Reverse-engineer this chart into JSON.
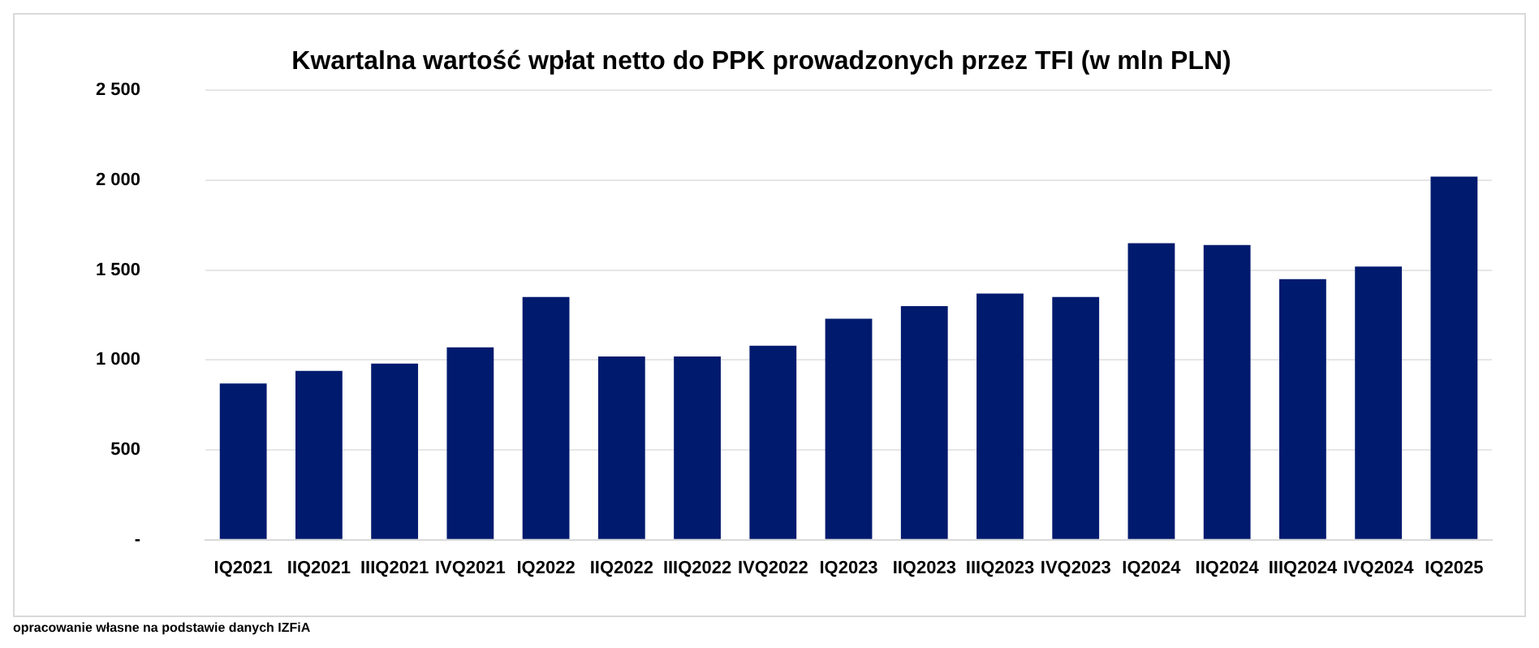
{
  "chart_data": {
    "type": "bar",
    "title": "Kwartalna wartość wpłat netto do PPK prowadzonych przez TFI (w mln PLN)",
    "categories": [
      "IQ2021",
      "IIQ2021",
      "IIIQ2021",
      "IVQ2021",
      "IQ2022",
      "IIQ2022",
      "IIIQ2022",
      "IVQ2022",
      "IQ2023",
      "IIQ2023",
      "IIIQ2023",
      "IVQ2023",
      "IQ2024",
      "IIQ2024",
      "IIIQ2024",
      "IVQ2024",
      "IQ2025"
    ],
    "values": [
      870,
      940,
      980,
      1070,
      1350,
      1020,
      1020,
      1080,
      1230,
      1300,
      1370,
      1350,
      1650,
      1640,
      1450,
      1520,
      2020
    ],
    "color": "#001a6e",
    "ylim": [
      0,
      2500
    ],
    "yticks": [
      {
        "value": 0,
        "label": "-"
      },
      500,
      {
        "value": 1000,
        "label": "1 000"
      },
      {
        "value": 1500,
        "label": "1 500"
      },
      {
        "value": 2000,
        "label": "2 000"
      },
      {
        "value": 2500,
        "label": "2 500"
      }
    ],
    "grid": "y",
    "legend": false,
    "annotations": [
      "opracowanie własne na podstawie danych IZFiA"
    ]
  }
}
